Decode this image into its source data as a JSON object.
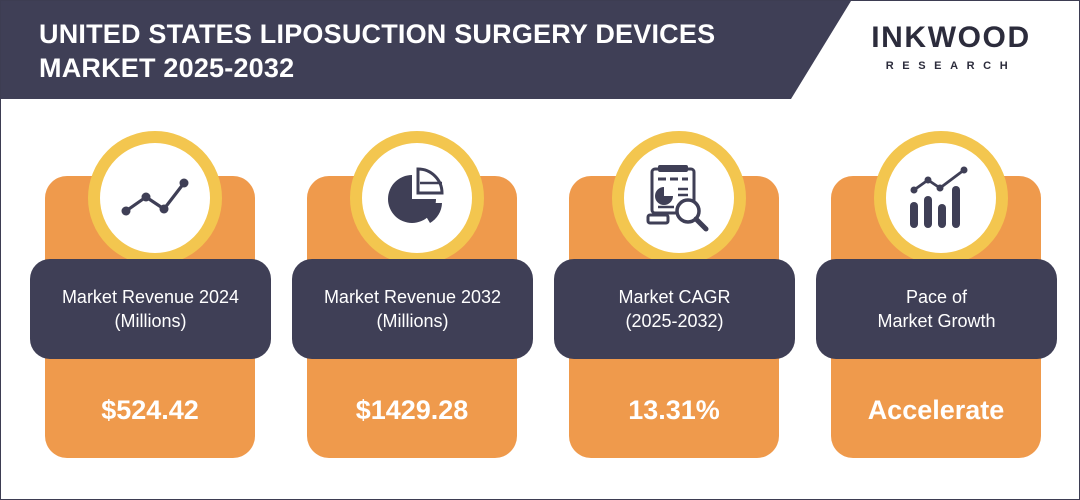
{
  "header": {
    "title_line1": "UNITED STATES LIPOSUCTION SURGERY DEVICES",
    "title_line2": "MARKET 2025-2032"
  },
  "logo": {
    "name": "INKWOOD",
    "sub": "RESEARCH"
  },
  "colors": {
    "header_bg": "#3f3f56",
    "card_orange": "#ef9a4c",
    "ring_yellow": "#f3c64f",
    "label_dark": "#3f3f56"
  },
  "cards": [
    {
      "icon": "line-chart-icon",
      "label_line1": "Market Revenue 2024",
      "label_line2": "(Millions)",
      "value": "$524.42"
    },
    {
      "icon": "pie-chart-icon",
      "label_line1": "Market Revenue 2032",
      "label_line2": "(Millions)",
      "value": "$1429.28"
    },
    {
      "icon": "report-analysis-icon",
      "label_line1": "Market CAGR",
      "label_line2": "(2025-2032)",
      "value": "13.31%"
    },
    {
      "icon": "growth-chart-icon",
      "label_line1": "Pace of",
      "label_line2": "Market Growth",
      "value": "Accelerate"
    }
  ]
}
